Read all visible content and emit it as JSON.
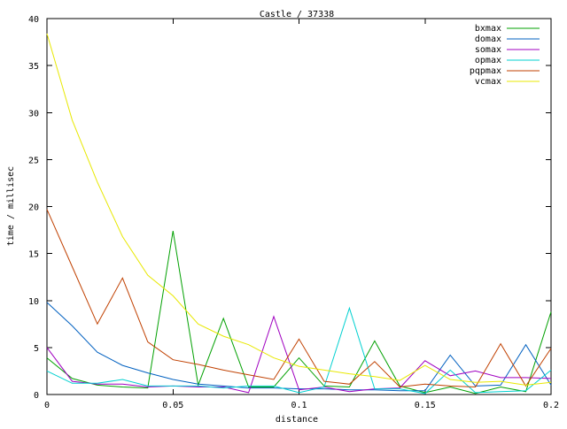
{
  "chart_data": {
    "type": "line",
    "title": "Castle / 37338",
    "xlabel": "distance",
    "ylabel": "time / millisec",
    "xlim": [
      0,
      0.2
    ],
    "ylim": [
      0,
      40
    ],
    "x_ticks": [
      0,
      0.05,
      0.1,
      0.15,
      0.2
    ],
    "x_tick_labels": [
      "0",
      "0.05",
      "0.1",
      "0.15",
      "0.2"
    ],
    "y_ticks": [
      0,
      5,
      10,
      15,
      20,
      25,
      30,
      35,
      40
    ],
    "y_tick_labels": [
      "0",
      "5",
      "10",
      "15",
      "20",
      "25",
      "30",
      "35",
      "40"
    ],
    "grid": false,
    "legend_position": "top-right",
    "x": [
      0,
      0.01,
      0.02,
      0.03,
      0.04,
      0.05,
      0.06,
      0.07,
      0.08,
      0.09,
      0.1,
      0.11,
      0.12,
      0.13,
      0.14,
      0.15,
      0.16,
      0.17,
      0.18,
      0.19,
      0.2
    ],
    "series": [
      {
        "name": "bxmax",
        "color": "#00a000",
        "values": [
          3.9,
          1.7,
          1.0,
          0.8,
          0.7,
          17.4,
          1.0,
          8.1,
          0.8,
          0.8,
          3.9,
          0.9,
          0.8,
          5.7,
          0.9,
          0.2,
          0.8,
          0.1,
          0.8,
          0.3,
          8.8
        ]
      },
      {
        "name": "domax",
        "color": "#0060c0",
        "values": [
          9.8,
          7.3,
          4.5,
          3.1,
          2.3,
          1.6,
          1.1,
          0.9,
          0.7,
          0.7,
          0.6,
          0.6,
          0.5,
          0.5,
          0.4,
          0.4,
          4.2,
          0.9,
          1.0,
          5.3,
          1.0
        ]
      },
      {
        "name": "somax",
        "color": "#a000c0",
        "values": [
          5.0,
          1.4,
          1.1,
          1.1,
          0.8,
          0.9,
          0.8,
          0.8,
          0.2,
          8.3,
          0.5,
          0.8,
          0.3,
          0.6,
          0.7,
          3.6,
          2.0,
          2.5,
          1.8,
          1.8,
          1.7
        ]
      },
      {
        "name": "opmax",
        "color": "#00d0d0",
        "values": [
          2.5,
          1.2,
          1.2,
          1.6,
          0.9,
          0.9,
          0.9,
          0.7,
          0.9,
          0.9,
          0.2,
          0.8,
          9.2,
          0.6,
          0.6,
          0.1,
          2.6,
          0.2,
          0.3,
          0.4,
          2.6
        ]
      },
      {
        "name": "pqpmax",
        "color": "#c04000",
        "values": [
          19.7,
          13.6,
          7.5,
          12.4,
          5.6,
          3.7,
          3.2,
          2.6,
          2.1,
          1.6,
          5.9,
          1.4,
          1.1,
          3.5,
          0.8,
          1.1,
          0.9,
          0.8,
          5.4,
          0.9,
          4.9
        ]
      },
      {
        "name": "vcmax",
        "color": "#e8e800",
        "values": [
          38.4,
          29.2,
          22.6,
          16.8,
          12.7,
          10.5,
          7.5,
          6.2,
          5.3,
          3.9,
          3.0,
          2.6,
          2.2,
          1.9,
          1.5,
          3.1,
          1.6,
          1.3,
          1.4,
          1.0,
          1.3
        ]
      }
    ]
  }
}
